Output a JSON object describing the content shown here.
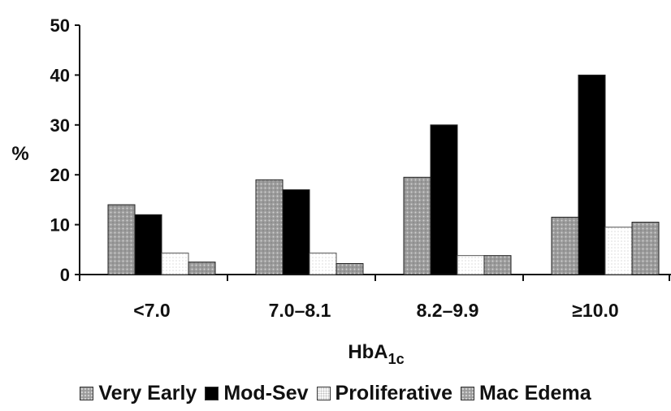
{
  "chart_data": {
    "type": "bar",
    "categories": [
      "<7.0",
      "7.0–8.1",
      "8.2–9.9",
      "≥10.0"
    ],
    "series": [
      {
        "name": "Very Early",
        "values": [
          14,
          19,
          19.5,
          11.5
        ]
      },
      {
        "name": "Mod-Sev",
        "values": [
          12,
          17,
          30,
          40
        ]
      },
      {
        "name": "Proliferative",
        "values": [
          4.3,
          4.3,
          3.8,
          9.5
        ]
      },
      {
        "name": "Mac Edema",
        "values": [
          2.5,
          2.2,
          3.8,
          10.5
        ]
      }
    ],
    "xlabel_main": "HbA",
    "xlabel_sub": "1c",
    "ylabel": "%",
    "ylim": [
      0,
      50
    ],
    "yticks": [
      "0",
      "10",
      "20",
      "30",
      "40",
      "50"
    ],
    "legend_position": "bottom",
    "grid": false
  },
  "colors": {
    "very_early": "#9a9a9a",
    "mod_sev": "#000000",
    "proliferative": "#ffffff",
    "mac_edema": "#9a9a9a"
  }
}
